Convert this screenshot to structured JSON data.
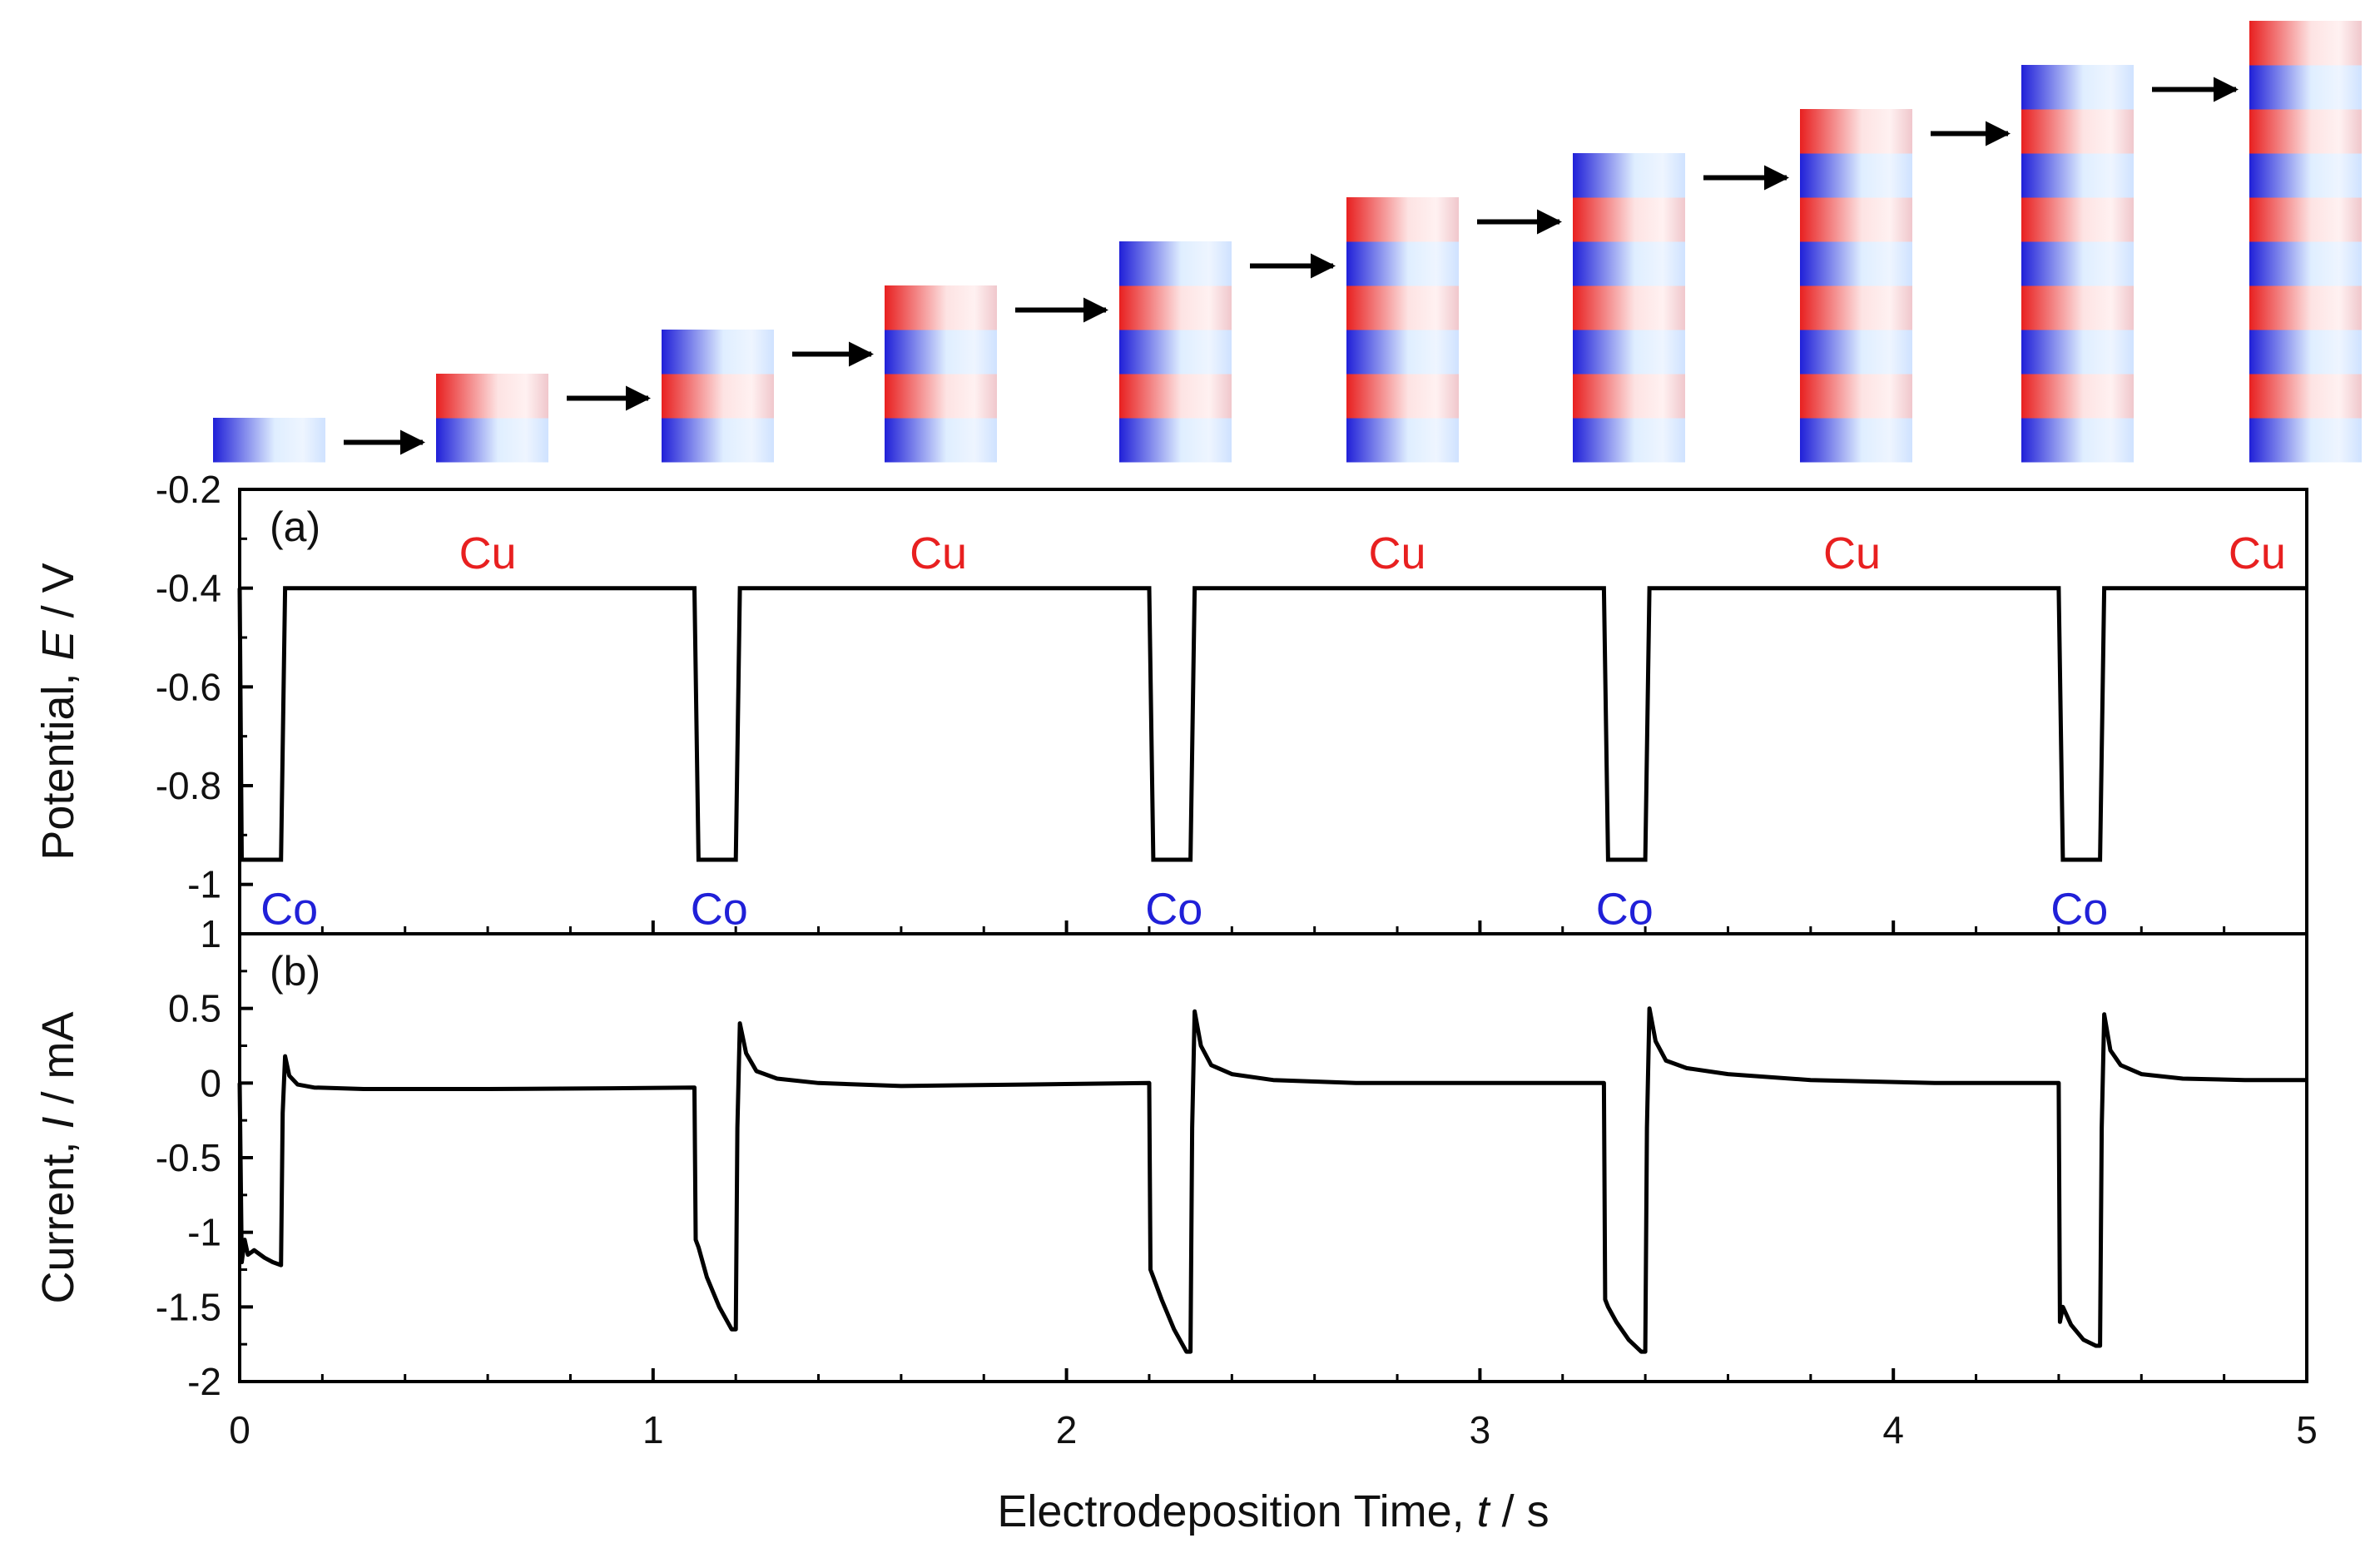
{
  "figure": {
    "stack_steps": [
      {
        "layers": [
          "Co"
        ]
      },
      {
        "layers": [
          "Co",
          "Cu"
        ]
      },
      {
        "layers": [
          "Co",
          "Cu",
          "Co"
        ]
      },
      {
        "layers": [
          "Co",
          "Cu",
          "Co",
          "Cu"
        ]
      },
      {
        "layers": [
          "Co",
          "Cu",
          "Co",
          "Cu",
          "Co"
        ]
      },
      {
        "layers": [
          "Co",
          "Cu",
          "Co",
          "Cu",
          "Co",
          "Cu"
        ]
      },
      {
        "layers": [
          "Co",
          "Cu",
          "Co",
          "Cu",
          "Co",
          "Cu",
          "Co"
        ]
      },
      {
        "layers": [
          "Co",
          "Cu",
          "Co",
          "Cu",
          "Co",
          "Cu",
          "Co",
          "Cu"
        ]
      },
      {
        "layers": [
          "Co",
          "Cu",
          "Co",
          "Cu",
          "Co",
          "Cu",
          "Co",
          "Cu",
          "Co"
        ]
      },
      {
        "layers": [
          "Co",
          "Cu",
          "Co",
          "Cu",
          "Co",
          "Cu",
          "Co",
          "Cu",
          "Co",
          "Cu"
        ]
      }
    ],
    "colors": {
      "co": "#2020d8",
      "cu": "#e82020",
      "light": "#e8f2ff",
      "line": "#000000"
    }
  },
  "chart_data": [
    {
      "type": "line",
      "panel_label": "(a)",
      "title": "",
      "ylabel": {
        "pre": "Potential, ",
        "var": "E",
        "post": " / V"
      },
      "xlim": [
        0,
        5
      ],
      "ylim": [
        -1.1,
        -0.2
      ],
      "yticks": [
        -0.2,
        -0.4,
        -0.6,
        -0.8,
        -1
      ],
      "ytick_labels": [
        "-0.2",
        "-0.4",
        "-0.6",
        "-0.8",
        "-1"
      ],
      "series": [
        {
          "name": "Potential",
          "x": [
            0,
            0.005,
            0.1,
            0.11,
            1.1,
            1.11,
            1.2,
            1.21,
            2.2,
            2.21,
            2.3,
            2.31,
            3.3,
            3.31,
            3.4,
            3.41,
            4.4,
            4.41,
            4.5,
            4.51,
            5
          ],
          "y": [
            -0.4,
            -0.95,
            -0.95,
            -0.4,
            -0.4,
            -0.95,
            -0.95,
            -0.4,
            -0.4,
            -0.95,
            -0.95,
            -0.4,
            -0.4,
            -0.95,
            -0.95,
            -0.4,
            -0.4,
            -0.95,
            -0.95,
            -0.4,
            -0.4
          ]
        }
      ],
      "annotations": [
        {
          "text": "Cu",
          "x": 0.6,
          "y": -0.33,
          "metal": "cu"
        },
        {
          "text": "Cu",
          "x": 1.69,
          "y": -0.33,
          "metal": "cu"
        },
        {
          "text": "Cu",
          "x": 2.8,
          "y": -0.33,
          "metal": "cu"
        },
        {
          "text": "Cu",
          "x": 3.9,
          "y": -0.33,
          "metal": "cu"
        },
        {
          "text": "Cu",
          "x": 4.88,
          "y": -0.33,
          "metal": "cu"
        },
        {
          "text": "Co",
          "x": 0.12,
          "y": -1.05,
          "metal": "co"
        },
        {
          "text": "Co",
          "x": 1.16,
          "y": -1.05,
          "metal": "co"
        },
        {
          "text": "Co",
          "x": 2.26,
          "y": -1.05,
          "metal": "co"
        },
        {
          "text": "Co",
          "x": 3.35,
          "y": -1.05,
          "metal": "co"
        },
        {
          "text": "Co",
          "x": 4.45,
          "y": -1.05,
          "metal": "co"
        }
      ]
    },
    {
      "type": "line",
      "panel_label": "(b)",
      "title": "",
      "xlabel": {
        "pre": "Electrodeposition Time, ",
        "var": "t",
        "post": " / s"
      },
      "ylabel": {
        "pre": "Current, ",
        "var": "I",
        "post": " / mA"
      },
      "xlim": [
        0,
        5
      ],
      "ylim": [
        -2,
        1
      ],
      "xticks": [
        0,
        1,
        2,
        3,
        4,
        5
      ],
      "xtick_labels": [
        "0",
        "1",
        "2",
        "3",
        "4",
        "5"
      ],
      "yticks": [
        1,
        0.5,
        0,
        -0.5,
        -1,
        -1.5,
        -2
      ],
      "ytick_labels": [
        "1",
        "0.5",
        "0",
        "-0.5",
        "-1",
        "-1.5",
        "-2"
      ],
      "series": [
        {
          "name": "Current",
          "x": [
            0,
            0.005,
            0.012,
            0.02,
            0.035,
            0.06,
            0.08,
            0.1,
            0.104,
            0.11,
            0.12,
            0.14,
            0.18,
            0.3,
            0.6,
            0.9,
            1.1,
            1.103,
            1.11,
            1.13,
            1.16,
            1.19,
            1.2,
            1.204,
            1.21,
            1.225,
            1.25,
            1.3,
            1.4,
            1.6,
            1.9,
            2.2,
            2.203,
            2.21,
            2.23,
            2.26,
            2.29,
            2.3,
            2.304,
            2.31,
            2.325,
            2.35,
            2.4,
            2.5,
            2.7,
            3.0,
            3.3,
            3.303,
            3.31,
            3.33,
            3.36,
            3.39,
            3.4,
            3.404,
            3.41,
            3.425,
            3.45,
            3.5,
            3.6,
            3.8,
            4.1,
            4.4,
            4.403,
            4.41,
            4.43,
            4.46,
            4.49,
            4.5,
            4.504,
            4.51,
            4.525,
            4.55,
            4.6,
            4.7,
            4.85,
            5.0
          ],
          "y": [
            0,
            -1.2,
            -1.05,
            -1.15,
            -1.12,
            -1.17,
            -1.2,
            -1.22,
            -0.2,
            0.18,
            0.05,
            -0.01,
            -0.03,
            -0.04,
            -0.04,
            -0.035,
            -0.03,
            -1.05,
            -1.1,
            -1.3,
            -1.5,
            -1.65,
            -1.65,
            -0.3,
            0.4,
            0.2,
            0.08,
            0.03,
            0.0,
            -0.02,
            -0.01,
            0.0,
            -1.25,
            -1.3,
            -1.45,
            -1.65,
            -1.8,
            -1.8,
            -0.3,
            0.48,
            0.25,
            0.12,
            0.06,
            0.02,
            0.0,
            0.0,
            0.0,
            -1.45,
            -1.5,
            -1.6,
            -1.72,
            -1.8,
            -1.8,
            -0.3,
            0.5,
            0.28,
            0.15,
            0.1,
            0.06,
            0.02,
            0.0,
            0.0,
            -1.6,
            -1.5,
            -1.62,
            -1.72,
            -1.76,
            -1.76,
            -0.3,
            0.46,
            0.22,
            0.12,
            0.06,
            0.03,
            0.02,
            0.02
          ]
        }
      ]
    }
  ]
}
